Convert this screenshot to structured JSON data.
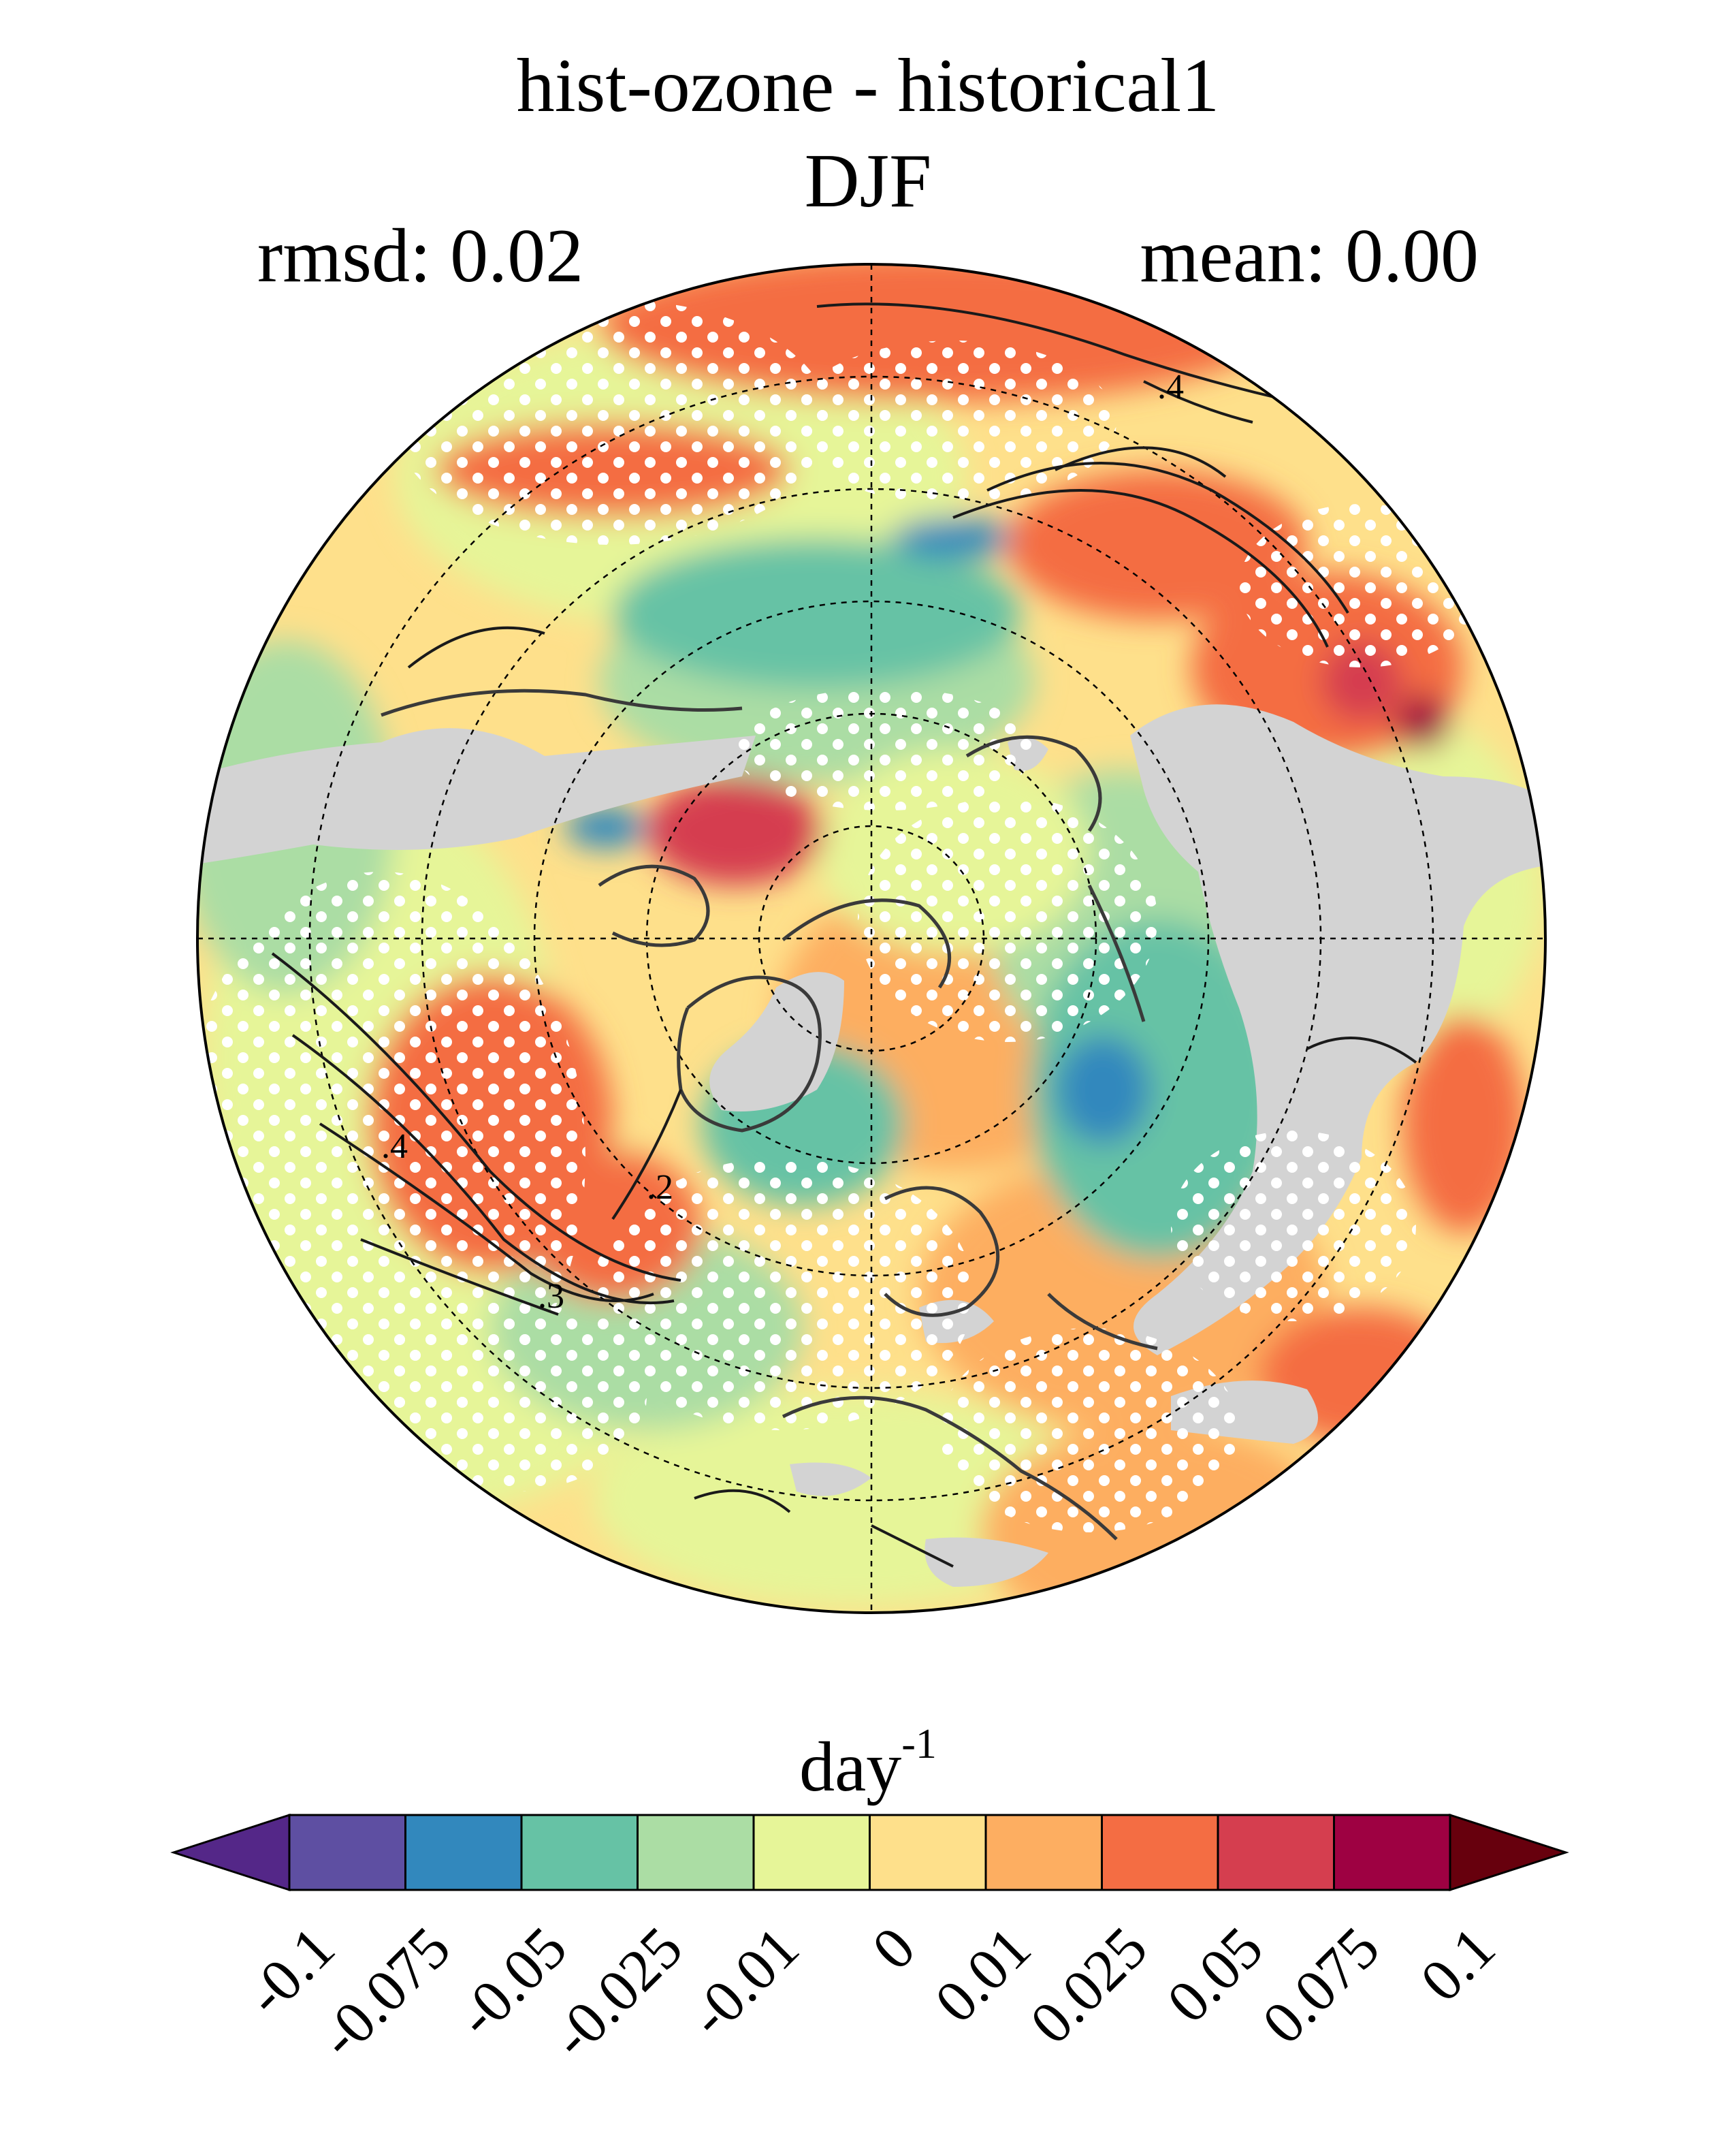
{
  "title": {
    "line1": "hist-ozone - historical1",
    "line2": "DJF"
  },
  "stats": {
    "rmsd": "rmsd: 0.02",
    "mean": "mean: 0.00"
  },
  "map": {
    "projection": "north-polar-stereographic",
    "contour_labels": [
      ".4",
      ".4",
      ".3",
      ".2"
    ],
    "colors": {
      "missing": "#d3d3d3",
      "stipple": "#ffffff",
      "contour": "#1a1a1a",
      "coast": "#3a3a3a"
    }
  },
  "colorbar": {
    "unit": "day",
    "unit_exponent": "-1",
    "levels": [
      "-0.1",
      "-0.075",
      "-0.05",
      "-0.025",
      "-0.01",
      "0",
      "0.01",
      "0.025",
      "0.05",
      "0.075",
      "0.1"
    ],
    "colors": [
      "#5e4fa2",
      "#3288bd",
      "#66c2a5",
      "#abdda4",
      "#e6f598",
      "#fee08b",
      "#fdae61",
      "#f46d43",
      "#d53e4f",
      "#9e0142"
    ],
    "under_color": "#542788",
    "over_color": "#67000d"
  }
}
